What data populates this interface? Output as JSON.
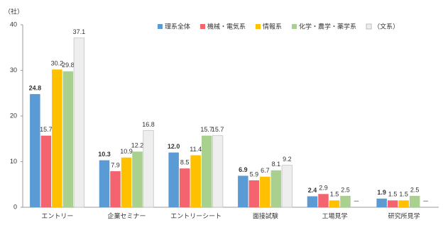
{
  "chart_data": {
    "type": "bar",
    "y_label": "（社）",
    "categories": [
      "エントリー",
      "企業セミナー",
      "エントリーシート",
      "面接試験",
      "工場見学",
      "研究所見学"
    ],
    "series": [
      {
        "name": "理系全体",
        "color": "#5b9bd5",
        "label_color": "#000000",
        "label_bold": true,
        "values": [
          24.8,
          10.3,
          12.0,
          6.9,
          2.4,
          1.9
        ],
        "value_labels": [
          "24.8",
          "10.3",
          "12.0",
          "6.9",
          "2.4",
          "1.9"
        ]
      },
      {
        "name": "機械・電気系",
        "color": "#f4646e",
        "label_color": "#c00000",
        "values": [
          15.7,
          7.9,
          8.5,
          5.9,
          2.9,
          1.5
        ]
      },
      {
        "name": "情報系",
        "color": "#ffc000",
        "label_color": "#c07800",
        "values": [
          30.2,
          10.9,
          11.4,
          6.7,
          1.5,
          1.5
        ]
      },
      {
        "name": "化学・農学・薬学系",
        "color": "#a9d08e",
        "label_color": "#4e7a2a",
        "values": [
          29.8,
          12.2,
          15.7,
          8.1,
          2.5,
          2.5
        ]
      },
      {
        "name": "（文系）",
        "color": "#eeeeee",
        "label_color": "#404040",
        "values": [
          37.1,
          16.8,
          15.7,
          9.2,
          null,
          null
        ],
        "value_labels": [
          "37.1",
          "16.8",
          "15.7",
          "9.2",
          "－",
          "－"
        ]
      }
    ],
    "ylim": [
      0,
      40
    ],
    "yticks": [
      0,
      10,
      20,
      30,
      40
    ],
    "grid": false
  }
}
